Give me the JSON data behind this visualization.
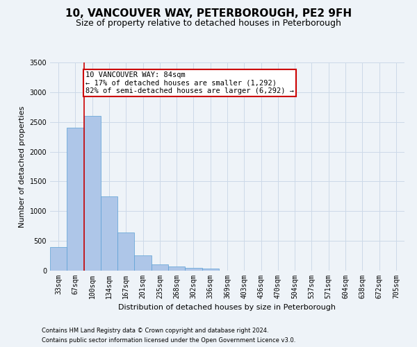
{
  "title": "10, VANCOUVER WAY, PETERBOROUGH, PE2 9FH",
  "subtitle": "Size of property relative to detached houses in Peterborough",
  "xlabel": "Distribution of detached houses by size in Peterborough",
  "ylabel": "Number of detached properties",
  "footnote1": "Contains HM Land Registry data © Crown copyright and database right 2024.",
  "footnote2": "Contains public sector information licensed under the Open Government Licence v3.0.",
  "bin_labels": [
    "33sqm",
    "67sqm",
    "100sqm",
    "134sqm",
    "167sqm",
    "201sqm",
    "235sqm",
    "268sqm",
    "302sqm",
    "336sqm",
    "369sqm",
    "403sqm",
    "436sqm",
    "470sqm",
    "504sqm",
    "537sqm",
    "571sqm",
    "604sqm",
    "638sqm",
    "672sqm",
    "705sqm"
  ],
  "bar_values": [
    400,
    2400,
    2600,
    1250,
    640,
    260,
    110,
    65,
    45,
    35,
    0,
    0,
    0,
    0,
    0,
    0,
    0,
    0,
    0,
    0,
    0
  ],
  "bar_color": "#aec6e8",
  "bar_edge_color": "#5a9fd4",
  "ylim": [
    0,
    3500
  ],
  "yticks": [
    0,
    500,
    1000,
    1500,
    2000,
    2500,
    3000,
    3500
  ],
  "property_line_x": 1.5,
  "annotation_title": "10 VANCOUVER WAY: 84sqm",
  "annotation_line1": "← 17% of detached houses are smaller (1,292)",
  "annotation_line2": "82% of semi-detached houses are larger (6,292) →",
  "annotation_box_color": "#ffffff",
  "annotation_box_edge": "#cc0000",
  "vline_color": "#cc0000",
  "grid_color": "#ccd9e8",
  "background_color": "#eef3f8",
  "title_fontsize": 11,
  "subtitle_fontsize": 9,
  "annotation_fontsize": 7.5,
  "axis_label_fontsize": 8,
  "tick_fontsize": 7
}
